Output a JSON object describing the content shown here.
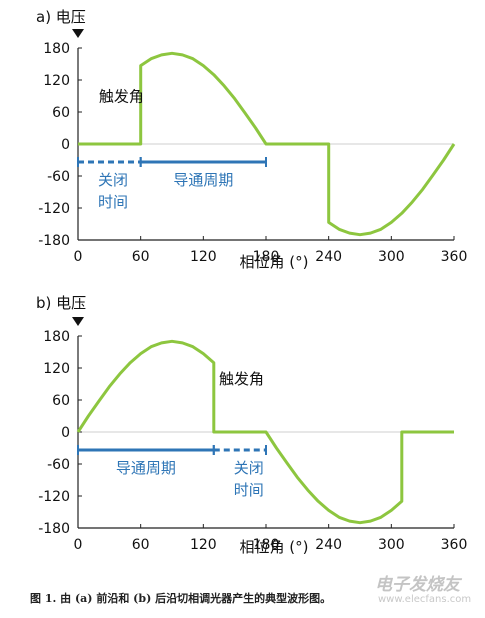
{
  "chart_data": [
    {
      "type": "line",
      "panel_label": "a) 电压",
      "xlabel": "相位角 (°)",
      "ylabel": "",
      "xlim": [
        0,
        360
      ],
      "ylim": [
        -180,
        180
      ],
      "xticks": [
        0,
        60,
        120,
        180,
        240,
        300,
        360
      ],
      "yticks": [
        180,
        120,
        60,
        0,
        -60,
        -120,
        -180
      ],
      "series": [
        {
          "color": "#8dc63f",
          "x": [
            0,
            60,
            60,
            70,
            80,
            90,
            100,
            110,
            120,
            130,
            140,
            150,
            160,
            170,
            180,
            240,
            240,
            250,
            260,
            270,
            280,
            290,
            300,
            310,
            320,
            330,
            340,
            350,
            360
          ],
          "y": [
            0,
            0,
            147,
            160,
            167,
            170,
            167,
            160,
            147,
            130,
            109,
            85,
            58,
            30,
            0,
            0,
            -147,
            -160,
            -167,
            -170,
            -167,
            -160,
            -147,
            -130,
            -109,
            -85,
            -58,
            -30,
            0
          ]
        }
      ],
      "annotations": [
        {
          "text": "触发角",
          "x": 20,
          "y": 80
        },
        {
          "text": "关闭\n时间",
          "span": [
            0,
            60
          ],
          "style": "dashed",
          "color": "#2e75b6"
        },
        {
          "text": "导通周期",
          "span": [
            60,
            180
          ],
          "style": "solid",
          "color": "#2e75b6"
        }
      ],
      "grid": false
    },
    {
      "type": "line",
      "panel_label": "b) 电压",
      "xlabel": "相位角 (°)",
      "ylabel": "",
      "xlim": [
        0,
        360
      ],
      "ylim": [
        -180,
        180
      ],
      "xticks": [
        0,
        60,
        120,
        180,
        240,
        300,
        360
      ],
      "yticks": [
        180,
        120,
        60,
        0,
        -60,
        -120,
        -180
      ],
      "series": [
        {
          "color": "#8dc63f",
          "x": [
            0,
            10,
            20,
            30,
            40,
            50,
            60,
            70,
            80,
            90,
            100,
            110,
            120,
            130,
            130,
            180,
            190,
            200,
            210,
            220,
            230,
            240,
            250,
            260,
            270,
            280,
            290,
            300,
            310,
            310,
            360
          ],
          "y": [
            0,
            30,
            58,
            85,
            109,
            130,
            147,
            160,
            167,
            170,
            167,
            160,
            147,
            130,
            0,
            0,
            -30,
            -58,
            -85,
            -109,
            -130,
            -147,
            -160,
            -167,
            -170,
            -167,
            -160,
            -147,
            -130,
            0,
            0
          ]
        }
      ],
      "annotations": [
        {
          "text": "触发角",
          "x": 135,
          "y": 90
        },
        {
          "text": "导通周期",
          "span": [
            0,
            130
          ],
          "style": "solid",
          "color": "#2e75b6"
        },
        {
          "text": "关闭\n时间",
          "span": [
            130,
            180
          ],
          "style": "dashed",
          "color": "#2e75b6"
        }
      ],
      "grid": false
    }
  ],
  "caption": "图 1. 由 (a) 前沿和 (b) 后沿切相调光器产生的典型波形图。",
  "watermark": "电子发烧友",
  "watermark_url": "www.elecfans.com",
  "colors": {
    "wave": "#8dc63f",
    "annotation": "#2e75b6",
    "axis": "#222222",
    "zero_line": "#cfcfcf"
  }
}
